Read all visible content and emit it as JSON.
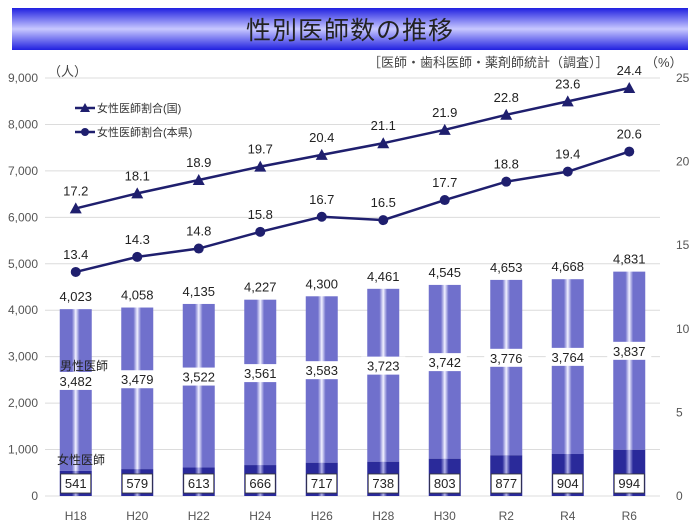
{
  "title": "性別医師数の推移",
  "source": "［医師・歯科医師・薬剤師統計（調査）］",
  "chart_data": {
    "type": "bar+line",
    "title": "性別医師数の推移",
    "categories": [
      "H18",
      "H20",
      "H22",
      "H24",
      "H26",
      "H28",
      "H30",
      "R2",
      "R4",
      "R6"
    ],
    "left_axis": {
      "unit": "（人）",
      "ylim": [
        0,
        9000
      ],
      "ticks": [
        "0",
        "1,000",
        "2,000",
        "3,000",
        "4,000",
        "5,000",
        "6,000",
        "7,000",
        "8,000",
        "9,000"
      ]
    },
    "right_axis": {
      "unit": "（%）",
      "ylim": [
        0,
        25
      ],
      "ticks": [
        "0",
        "5",
        "10",
        "15",
        "20",
        "25"
      ]
    },
    "bar_series": [
      {
        "name": "女性医師",
        "values": [
          541,
          579,
          613,
          666,
          717,
          738,
          803,
          877,
          904,
          994
        ],
        "labels": [
          "541",
          "579",
          "613",
          "666",
          "717",
          "738",
          "803",
          "877",
          "904",
          "994"
        ],
        "color": "#2a2a9a"
      },
      {
        "name": "男性医師",
        "values": [
          3482,
          3479,
          3522,
          3561,
          3583,
          3723,
          3742,
          3776,
          3764,
          3837
        ],
        "labels": [
          "3,482",
          "3,479",
          "3,522",
          "3,561",
          "3,583",
          "3,723",
          "3,742",
          "3,776",
          "3,764",
          "3,837"
        ],
        "color": "#7070cc"
      }
    ],
    "totals": [
      "4,023",
      "4,058",
      "4,135",
      "4,227",
      "4,300",
      "4,461",
      "4,545",
      "4,653",
      "4,668",
      "4,831"
    ],
    "line_series": [
      {
        "name": "女性医師割合(国)",
        "marker": "triangle",
        "values": [
          17.2,
          18.1,
          18.9,
          19.7,
          20.4,
          21.1,
          21.9,
          22.8,
          23.6,
          24.4
        ],
        "color": "#1f1f6e"
      },
      {
        "name": "女性医師割合(本県)",
        "marker": "circle",
        "values": [
          13.4,
          14.3,
          14.8,
          15.8,
          16.7,
          16.5,
          17.7,
          18.8,
          19.4,
          20.6
        ],
        "color": "#1f1f6e"
      }
    ],
    "grid": true,
    "legend": "top-left"
  }
}
